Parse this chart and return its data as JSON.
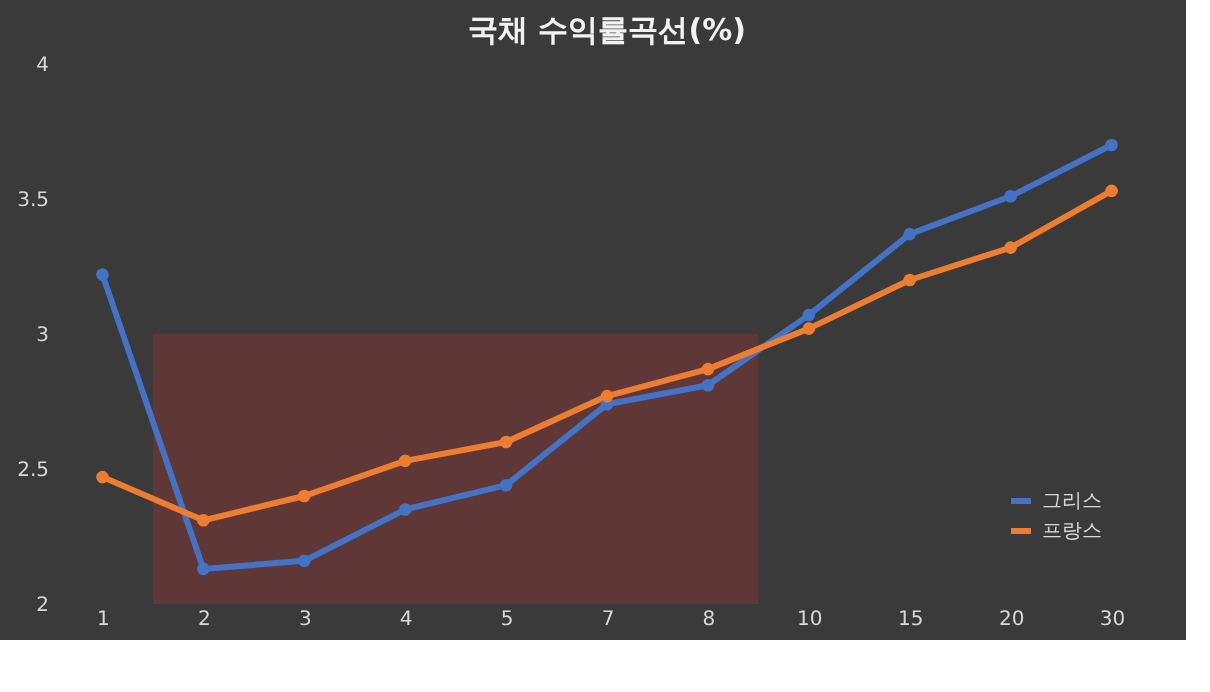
{
  "chart_data": {
    "type": "line",
    "title": "국채 수익률곡선(%)",
    "categories": [
      "1",
      "2",
      "3",
      "4",
      "5",
      "7",
      "8",
      "10",
      "15",
      "20",
      "30"
    ],
    "series": [
      {
        "name": "그리스",
        "color": "#4472c4",
        "values": [
          3.22,
          2.13,
          2.16,
          2.35,
          2.44,
          2.74,
          2.81,
          3.07,
          3.37,
          3.51,
          3.7
        ]
      },
      {
        "name": "프랑스",
        "color": "#ed7d31",
        "values": [
          2.47,
          2.31,
          2.4,
          2.53,
          2.6,
          2.77,
          2.87,
          3.02,
          3.2,
          3.32,
          3.53
        ]
      }
    ],
    "ylim": [
      2,
      4
    ],
    "yticks": [
      2,
      2.5,
      3,
      3.5,
      4
    ],
    "bands": [
      {
        "axis": "x",
        "from": "2",
        "to": "8",
        "color": "#7a3535"
      }
    ],
    "legend": "bottom right",
    "marker": "circle",
    "line_style": "solid",
    "grid": false
  }
}
